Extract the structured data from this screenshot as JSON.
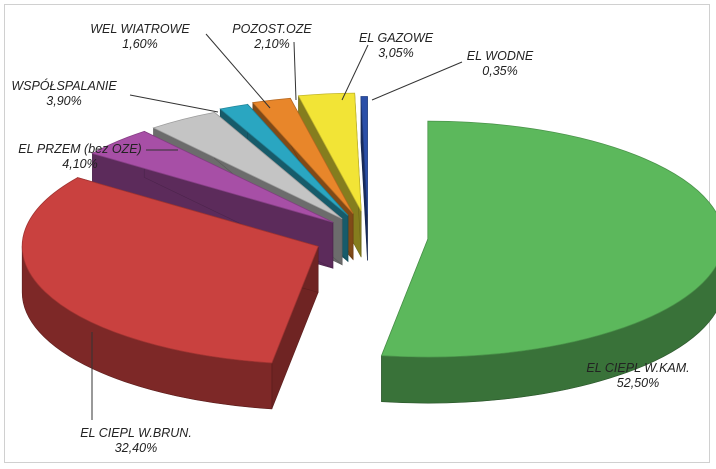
{
  "chart_data": {
    "type": "pie",
    "style": "3d-exploded",
    "legend": "none",
    "slices": [
      {
        "label": "EL CIEPL W.KAM.",
        "value": 52.5,
        "value_label": "52,50%",
        "color": "#5cb85c"
      },
      {
        "label": "EL CIEPL W.BRUN.",
        "value": 32.4,
        "value_label": "32,40%",
        "color": "#c9413f"
      },
      {
        "label": "EL PRZEM (bez OZE)",
        "value": 4.1,
        "value_label": "4,10%",
        "color": "#a74fa6"
      },
      {
        "label": "WSPÓŁSPALANIE",
        "value": 3.9,
        "value_label": "3,90%",
        "color": "#c4c4c4"
      },
      {
        "label": "WEL WIATROWE",
        "value": 1.6,
        "value_label": "1,60%",
        "color": "#2aa6c1"
      },
      {
        "label": "POZOST.OZE",
        "value": 2.1,
        "value_label": "2,10%",
        "color": "#e8862a"
      },
      {
        "label": "EL GAZOWE",
        "value": 3.05,
        "value_label": "3,05%",
        "color": "#f2e436"
      },
      {
        "label": "EL WODNE",
        "value": 0.35,
        "value_label": "0,35%",
        "color": "#2b4fa8"
      }
    ]
  }
}
